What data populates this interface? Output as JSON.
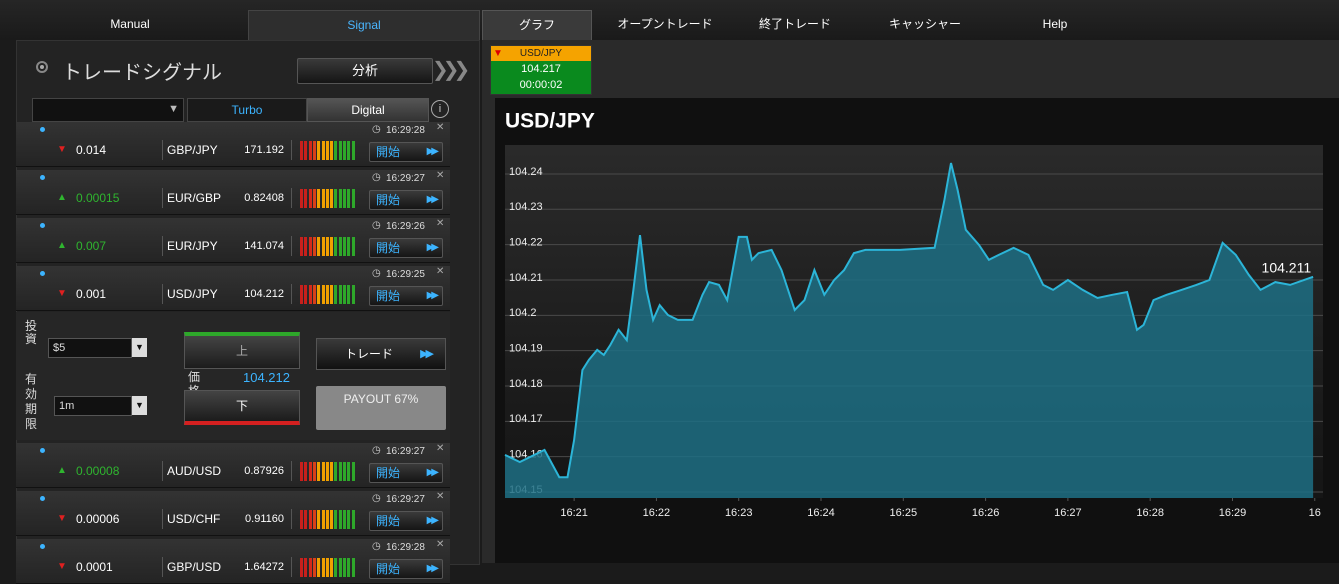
{
  "nav": {
    "tabs": [
      "Manual",
      "Signal",
      "グラフ",
      "オープントレード",
      "終了トレード",
      "キャッシャー",
      "Help"
    ]
  },
  "signal_panel": {
    "title": "トレードシグナル",
    "analyze_button": "分析",
    "tabs": [
      "Turbo",
      "Digital"
    ],
    "start_button": "開始",
    "signals": [
      {
        "direction": "down",
        "change": "0.014",
        "pair": "GBP/JPY",
        "price": "171.192",
        "time": "16:29:28"
      },
      {
        "direction": "up",
        "change": "0.00015",
        "pair": "EUR/GBP",
        "price": "0.82408",
        "time": "16:29:27"
      },
      {
        "direction": "up",
        "change": "0.007",
        "pair": "EUR/JPY",
        "price": "141.074",
        "time": "16:29:26"
      },
      {
        "direction": "down",
        "change": "0.001",
        "pair": "USD/JPY",
        "price": "104.212",
        "time": "16:29:25",
        "expanded": true
      },
      {
        "direction": "up",
        "change": "0.00008",
        "pair": "AUD/USD",
        "price": "0.87926",
        "time": "16:29:27"
      },
      {
        "direction": "down",
        "change": "0.00006",
        "pair": "USD/CHF",
        "price": "0.91160",
        "time": "16:29:27"
      },
      {
        "direction": "down",
        "change": "0.0001",
        "pair": "GBP/USD",
        "price": "1.64272",
        "time": "16:29:28"
      }
    ],
    "trade_form": {
      "investment_label": "投資",
      "investment": "$5",
      "expiry_label": "有効期限",
      "expiry": "1m",
      "up_button": "上",
      "down_button": "下",
      "price_label": "価格",
      "price": "104.212",
      "trade_button": "トレード",
      "payout": "PAYOUT 67%"
    }
  },
  "ticker": {
    "pair": "USD/JPY",
    "price": "104.217",
    "timer": "00:00:02"
  },
  "chart_data": {
    "type": "area",
    "title": "USD/JPY",
    "color": "#2cb5d8",
    "fill": "#1d6f84",
    "grid": "y",
    "x": [
      980.16,
      980.34,
      980.64,
      980.82,
      980.92,
      981.0,
      981.1,
      981.18,
      981.28,
      981.36,
      981.44,
      981.54,
      981.64,
      981.72,
      981.8,
      981.88,
      981.96,
      982.04,
      982.14,
      982.26,
      982.44,
      982.56,
      982.64,
      982.76,
      982.86,
      983.0,
      983.1,
      983.16,
      983.24,
      983.4,
      983.52,
      983.68,
      983.8,
      983.92,
      984.04,
      984.16,
      984.28,
      984.4,
      984.54,
      984.96,
      985.38,
      985.5,
      985.58,
      985.66,
      985.76,
      985.92,
      986.04,
      986.16,
      986.34,
      986.52,
      986.7,
      986.82,
      987.0,
      987.18,
      987.36,
      987.54,
      987.72,
      987.84,
      987.92,
      988.04,
      988.2,
      988.38,
      988.56,
      988.72,
      988.88,
      989.04,
      989.2,
      989.34,
      989.52,
      989.7,
      989.98
    ],
    "values": [
      104.1605,
      104.1585,
      104.1619,
      104.1542,
      104.1542,
      104.1647,
      104.1845,
      104.1874,
      104.1902,
      104.1888,
      104.1916,
      104.1959,
      104.193,
      104.2072,
      104.2227,
      104.2072,
      104.1987,
      104.2029,
      104.2001,
      104.1987,
      104.1987,
      104.2058,
      104.2094,
      104.2086,
      104.2043,
      104.2222,
      104.2222,
      104.2157,
      104.2176,
      104.2185,
      104.2128,
      104.2015,
      104.2043,
      104.2128,
      104.2058,
      104.21,
      104.2128,
      104.2176,
      104.2185,
      104.2185,
      104.2191,
      104.2326,
      104.2431,
      104.2355,
      104.2242,
      104.2199,
      104.2157,
      104.2171,
      104.2191,
      104.2171,
      104.2086,
      104.2072,
      104.21,
      104.2072,
      104.2049,
      104.2058,
      104.2066,
      104.1959,
      104.1973,
      104.2043,
      104.2058,
      104.2072,
      104.2086,
      104.21,
      104.2205,
      104.2171,
      104.2114,
      104.2072,
      104.2094,
      104.2086,
      104.2109
    ],
    "last_value_label": "104.211",
    "xlim": [
      980.16,
      990.1
    ],
    "xticks": [
      {
        "value": 981,
        "label": "16:21"
      },
      {
        "value": 982,
        "label": "16:22"
      },
      {
        "value": 983,
        "label": "16:23"
      },
      {
        "value": 984,
        "label": "16:24"
      },
      {
        "value": 985,
        "label": "16:25"
      },
      {
        "value": 986,
        "label": "16:26"
      },
      {
        "value": 987,
        "label": "16:27"
      },
      {
        "value": 988,
        "label": "16:28"
      },
      {
        "value": 989,
        "label": "16:29"
      },
      {
        "value": 990,
        "label": "16"
      }
    ],
    "ylim": [
      104.1483,
      104.2482
    ],
    "yticks": [
      104.15,
      104.16,
      104.17,
      104.18,
      104.19,
      104.2,
      104.21,
      104.22,
      104.23,
      104.24
    ]
  }
}
